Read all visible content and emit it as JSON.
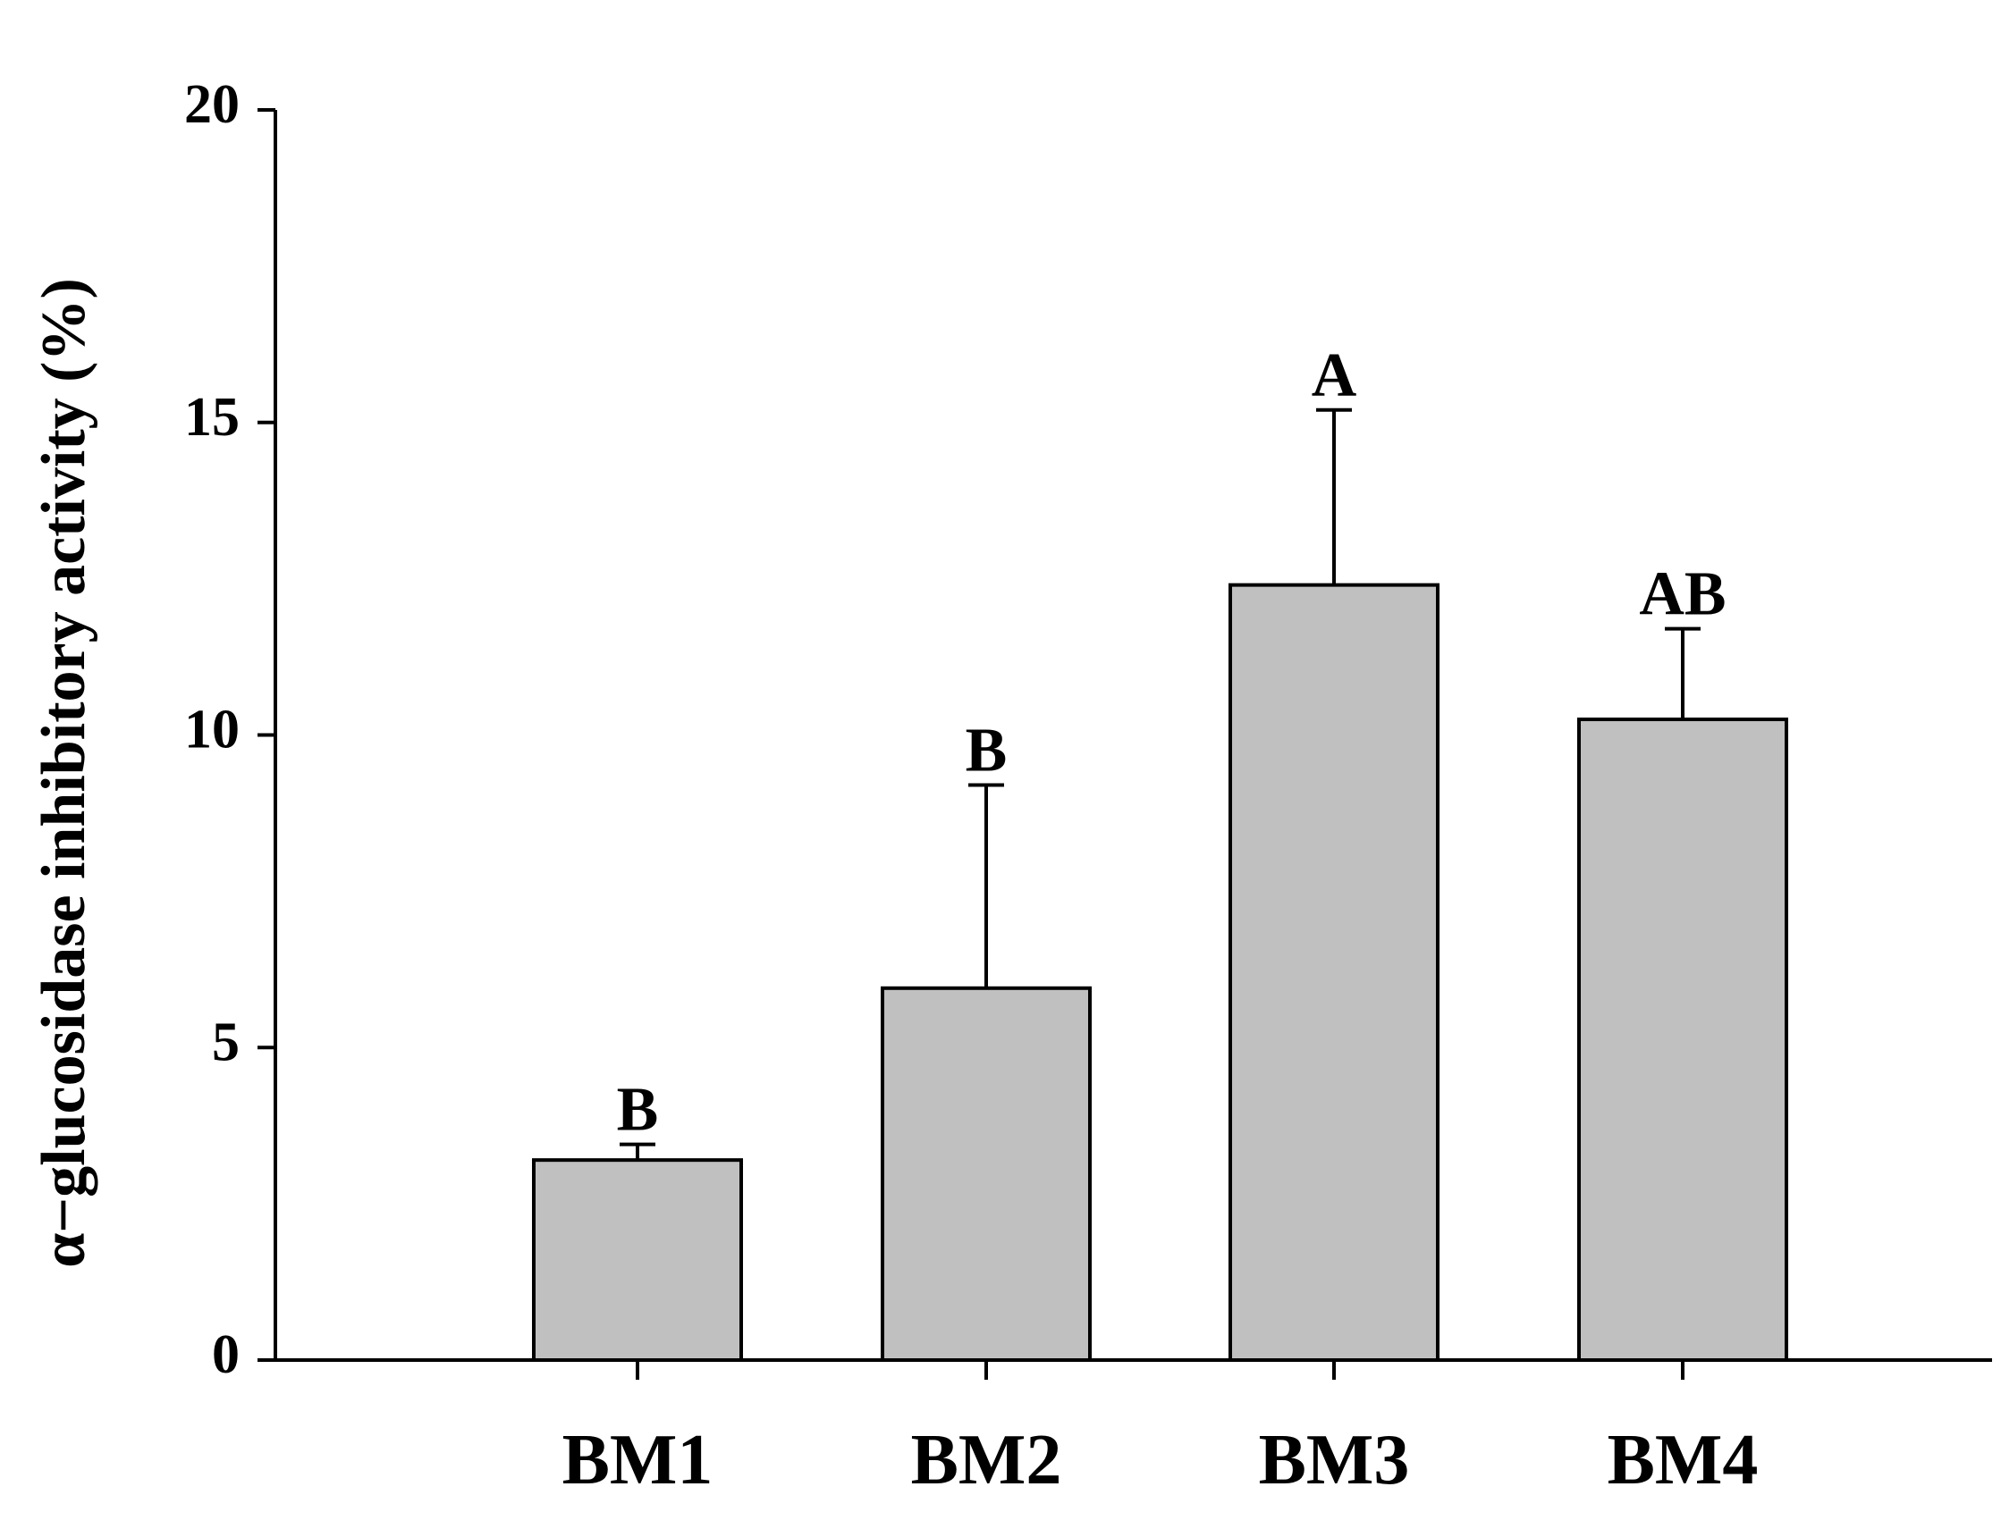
{
  "chart_data": {
    "type": "bar",
    "title": "",
    "xlabel": "",
    "ylabel": "α−glucosidase inhibitory activity (%)",
    "ylim": [
      0,
      20
    ],
    "yticks": [
      "0",
      "5",
      "10",
      "15",
      "20"
    ],
    "categories": [
      "BM1",
      "BM2",
      "BM3",
      "BM4"
    ],
    "values": [
      3.2,
      5.95,
      12.4,
      10.25
    ],
    "errors": [
      0.25,
      3.25,
      2.8,
      1.45
    ],
    "significance_letters": [
      "B",
      "B",
      "A",
      "AB"
    ],
    "grid": false,
    "legend": "none",
    "bar_color": "#c0c0c0",
    "bar_edge_color": "#000000",
    "axis_color": "#000000"
  }
}
